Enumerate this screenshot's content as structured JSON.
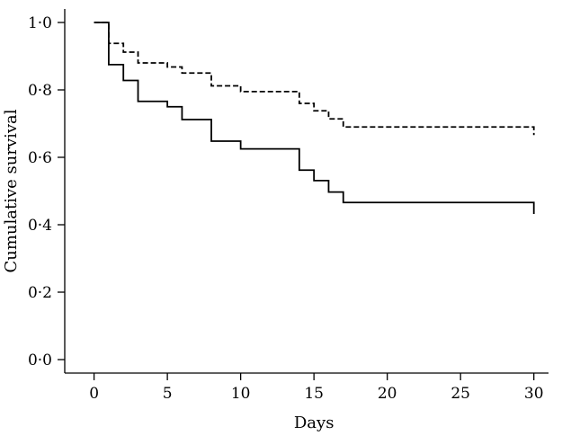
{
  "chart_data": {
    "type": "line",
    "step": true,
    "xlabel": "Days",
    "ylabel": "Cumulative survival",
    "xlim": [
      -2,
      31
    ],
    "ylim": [
      -0.04,
      1.04
    ],
    "x_ticks": [
      0,
      5,
      10,
      15,
      20,
      25,
      30
    ],
    "x_tick_labels": [
      "0",
      "5",
      "10",
      "15",
      "20",
      "25",
      "30"
    ],
    "y_ticks": [
      0.0,
      0.2,
      0.4,
      0.6,
      0.8,
      1.0
    ],
    "y_tick_labels": [
      "0·0",
      "0·2",
      "0·4",
      "0·6",
      "0·8",
      "1·0"
    ],
    "grid": false,
    "legend": "none",
    "series": [
      {
        "style": "solid",
        "color": "#000000",
        "x": [
          0,
          1,
          2,
          3,
          5,
          6,
          8,
          10,
          14,
          15,
          16,
          17,
          30
        ],
        "y": [
          1.0,
          0.875,
          0.828,
          0.766,
          0.75,
          0.712,
          0.648,
          0.625,
          0.562,
          0.531,
          0.497,
          0.466,
          0.432
        ]
      },
      {
        "style": "dashed",
        "color": "#000000",
        "x": [
          0,
          1,
          2,
          3,
          5,
          6,
          8,
          10,
          14,
          15,
          16,
          17,
          30
        ],
        "y": [
          1.0,
          0.938,
          0.912,
          0.88,
          0.868,
          0.85,
          0.812,
          0.795,
          0.76,
          0.738,
          0.714,
          0.69,
          0.666
        ]
      }
    ]
  }
}
